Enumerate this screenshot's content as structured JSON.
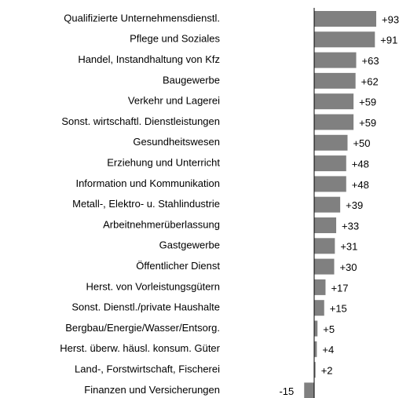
{
  "chart_data": {
    "type": "bar",
    "orientation": "horizontal",
    "color": "#808080",
    "categories": [
      "Qualifizierte Unternehmensdienstl.",
      "Pflege und Soziales",
      "Handel, Instandhaltung von Kfz",
      "Baugewerbe",
      "Verkehr und Lagerei",
      "Sonst. wirtschaftl. Dienstleistungen",
      "Gesundheitswesen",
      "Erziehung und Unterricht",
      "Information und Kommunikation",
      "Metall-, Elektro- u. Stahlindustrie",
      "Arbeitnehmerüberlassung",
      "Gastgewerbe",
      "Öffentlicher Dienst",
      "Herst. von Vorleistungsgütern",
      "Sonst. Dienstl./private Haushalte",
      "Bergbau/Energie/Wasser/Entsorg.",
      "Herst. überw. häusl. konsum. Güter",
      "Land-, Forstwirtschaft, Fischerei",
      "Finanzen und Versicherungen"
    ],
    "values": [
      93,
      91,
      63,
      62,
      59,
      59,
      50,
      48,
      48,
      39,
      33,
      31,
      30,
      17,
      15,
      5,
      4,
      2,
      -15
    ],
    "value_labels": [
      "+93",
      "+91",
      "+63",
      "+62",
      "+59",
      "+59",
      "+50",
      "+48",
      "+48",
      "+39",
      "+33",
      "+31",
      "+30",
      "+17",
      "+15",
      "+5",
      "+4",
      "+2",
      "-15"
    ]
  }
}
